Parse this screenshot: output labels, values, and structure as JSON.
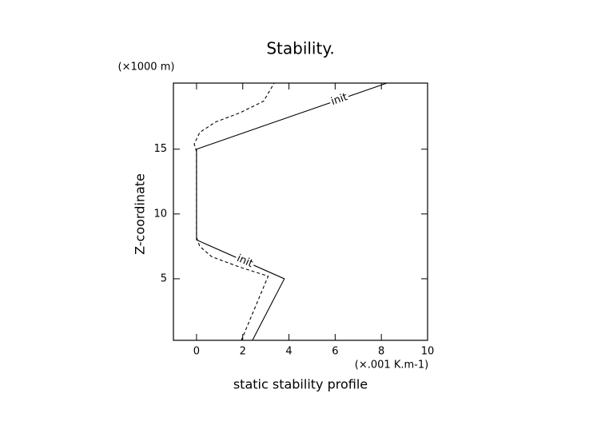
{
  "chart_data": {
    "type": "line",
    "title": "Stability.",
    "x_label": "static stability profile",
    "y_label": "Z-coordinate",
    "x_unit": "(×.001 K.m-1)",
    "y_unit": "(×1000 m)",
    "xlim": [
      -1,
      10
    ],
    "xticks": [
      0,
      2,
      4,
      6,
      8,
      10
    ],
    "ylim": [
      0.25,
      20.1
    ],
    "yticks": [
      5,
      10,
      15
    ],
    "series": [
      {
        "name": "init",
        "color": "#000000",
        "dash": "solid",
        "x": [
          2.42,
          3.8,
          0,
          0,
          8.24
        ],
        "values": [
          0.25,
          5.0,
          8.0,
          15.0,
          20.1
        ]
      },
      {
        "color": "#000000",
        "dash": "dashed",
        "x": [
          1.94,
          3.1,
          1.87,
          0.66,
          0.14,
          0,
          0,
          -0.1,
          0.14,
          0.83,
          1.87,
          2.9,
          3.36
        ],
        "values": [
          0.25,
          5.2,
          5.9,
          6.7,
          7.5,
          8.2,
          14.8,
          15.4,
          16.3,
          17.1,
          17.8,
          18.7,
          20.1
        ]
      }
    ]
  }
}
